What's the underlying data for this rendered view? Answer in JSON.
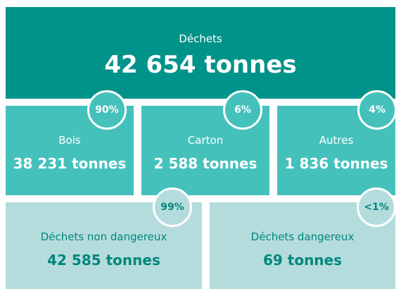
{
  "total": {
    "label": "Déchets",
    "value": "42 654 tonnes"
  },
  "materials": [
    {
      "label": "Bois",
      "value": "38 231 tonnes",
      "share": "90%"
    },
    {
      "label": "Carton",
      "value": "2 588 tonnes",
      "share": "6%"
    },
    {
      "label": "Autres",
      "value": "1 836 tonnes",
      "share": "4%"
    }
  ],
  "hazard": [
    {
      "label": "Déchets non dangereux",
      "value": "42 585 tonnes",
      "share": "99%"
    },
    {
      "label": "Déchets dangereux",
      "value": "69 tonnes",
      "share": "<1%"
    }
  ]
}
